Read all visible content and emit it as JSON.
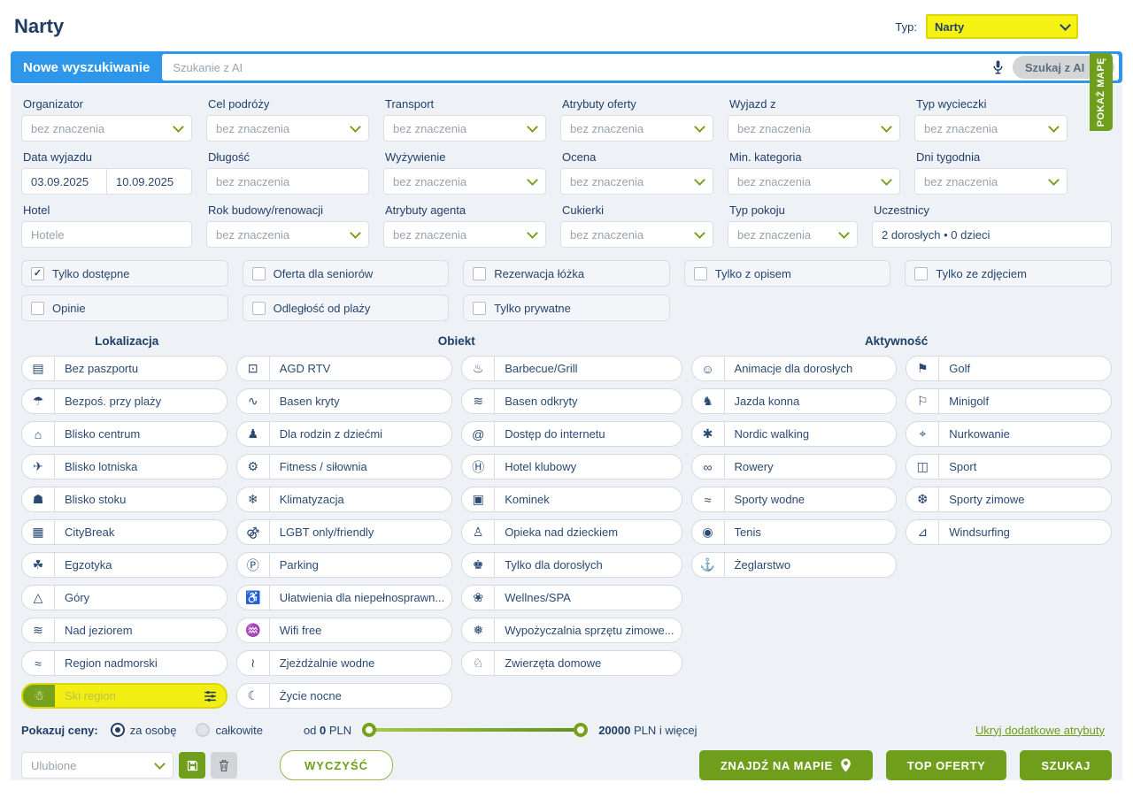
{
  "page_title": "Narty",
  "type_selector": {
    "label": "Typ:",
    "value": "Narty",
    "chevron_icon": "chevron-down-icon"
  },
  "search_bar": {
    "new_search_label": "Nowe wyszukiwanie",
    "input_placeholder": "Szukanie z AI",
    "mic_icon": "microphone-icon",
    "ai_button_label": "Szukaj z AI",
    "send_icon": "➤"
  },
  "map_tab": {
    "label": "POKAŻ MAPĘ"
  },
  "filters": {
    "row1": [
      {
        "label": "Organizator",
        "kind": "select",
        "value": "bez znaczenia"
      },
      {
        "label": "Cel podróży",
        "kind": "select",
        "value": "bez znaczenia"
      },
      {
        "label": "Transport",
        "kind": "select",
        "value": "bez znaczenia"
      },
      {
        "label": "Atrybuty oferty",
        "kind": "select",
        "value": "bez znaczenia"
      },
      {
        "label": "Wyjazd z",
        "kind": "select",
        "value": "bez znaczenia"
      },
      {
        "label": "Typ wycieczki",
        "kind": "select",
        "value": "bez znaczenia"
      }
    ],
    "row2": [
      {
        "label": "Data wyjazdu",
        "kind": "dates",
        "values": [
          "03.09.2025",
          "10.09.2025"
        ]
      },
      {
        "label": "Długość",
        "kind": "placeholder",
        "value": "bez znaczenia"
      },
      {
        "label": "Wyżywienie",
        "kind": "select",
        "value": "bez znaczenia"
      },
      {
        "label": "Ocena",
        "kind": "select",
        "value": "bez znaczenia"
      },
      {
        "label": "Min. kategoria",
        "kind": "select",
        "value": "bez znaczenia"
      },
      {
        "label": "Dni tygodnia",
        "kind": "select",
        "value": "bez znaczenia"
      }
    ],
    "row3": [
      {
        "label": "Hotel",
        "kind": "placeholder",
        "value": "Hotele"
      },
      {
        "label": "Rok budowy/renowacji",
        "kind": "select",
        "value": "bez znaczenia"
      },
      {
        "label": "Atrybuty agenta",
        "kind": "select",
        "value": "bez znaczenia"
      },
      {
        "label": "Cukierki",
        "kind": "select",
        "value": "bez znaczenia"
      },
      {
        "label": "Typ pokoju",
        "kind": "select",
        "value": "bez znaczenia"
      },
      {
        "label": "Uczestnicy",
        "kind": "value",
        "value": "2 dorosłych • 0 dzieci"
      }
    ]
  },
  "toggles_row1": [
    {
      "label": "Tylko dostępne",
      "checked": true
    },
    {
      "label": "Oferta dla seniorów",
      "checked": false
    },
    {
      "label": "Rezerwacja łóżka",
      "checked": false
    },
    {
      "label": "Tylko z opisem",
      "checked": false
    },
    {
      "label": "Tylko ze zdjęciem",
      "checked": false
    }
  ],
  "toggles_row2": [
    {
      "label": "Opinie",
      "checked": false
    },
    {
      "label": "Odległość od plaży",
      "checked": false
    },
    {
      "label": "Tylko prywatne",
      "checked": false
    }
  ],
  "sections": {
    "s1": "Lokalizacja",
    "s2": "Obiekt",
    "s3": "Aktywność"
  },
  "attribute_columns": [
    [
      {
        "icon": "passport-icon",
        "glyph": "▤",
        "label": "Bez paszportu"
      },
      {
        "icon": "beach-icon",
        "glyph": "☂",
        "label": "Bezpoś. przy plaży"
      },
      {
        "icon": "city-center-icon",
        "glyph": "⌂",
        "label": "Blisko centrum"
      },
      {
        "icon": "airport-icon",
        "glyph": "✈",
        "label": "Blisko lotniska"
      },
      {
        "icon": "ski-lift-icon",
        "glyph": "☗",
        "label": "Blisko stoku"
      },
      {
        "icon": "citybreak-icon",
        "glyph": "▦",
        "label": "CityBreak"
      },
      {
        "icon": "palm-icon",
        "glyph": "☘",
        "label": "Egzotyka"
      },
      {
        "icon": "mountain-icon",
        "glyph": "△",
        "label": "Góry"
      },
      {
        "icon": "lake-icon",
        "glyph": "≋",
        "label": "Nad jeziorem"
      },
      {
        "icon": "seaside-icon",
        "glyph": "≈",
        "label": "Region nadmorski"
      },
      {
        "icon": "skier-icon",
        "glyph": "☃",
        "label": "Ski region",
        "highlighted": true,
        "extra_icon": "sliders-icon"
      }
    ],
    [
      {
        "icon": "appliances-icon",
        "glyph": "⊡",
        "label": "AGD RTV"
      },
      {
        "icon": "indoor-pool-icon",
        "glyph": "∿",
        "label": "Basen kryty"
      },
      {
        "icon": "family-icon",
        "glyph": "♟",
        "label": "Dla rodzin z dziećmi"
      },
      {
        "icon": "fitness-icon",
        "glyph": "⚙",
        "label": "Fitness / siłownia"
      },
      {
        "icon": "air-conditioning-icon",
        "glyph": "❄",
        "label": "Klimatyzacja"
      },
      {
        "icon": "lgbt-icon",
        "glyph": "⚣",
        "label": "LGBT only/friendly"
      },
      {
        "icon": "parking-icon",
        "glyph": "Ⓟ",
        "label": "Parking"
      },
      {
        "icon": "wheelchair-icon",
        "glyph": "♿",
        "label": "Ułatwienia dla niepełnosprawn..."
      },
      {
        "icon": "wifi-icon",
        "glyph": "♒",
        "label": "Wifi free"
      },
      {
        "icon": "water-slide-icon",
        "glyph": "≀",
        "label": "Zjeżdżalnie wodne"
      },
      {
        "icon": "nightlife-icon",
        "glyph": "☾",
        "label": "Życie nocne"
      }
    ],
    [
      {
        "icon": "grill-icon",
        "glyph": "♨",
        "label": "Barbecue/Grill"
      },
      {
        "icon": "outdoor-pool-icon",
        "glyph": "≋",
        "label": "Basen odkryty"
      },
      {
        "icon": "internet-icon",
        "glyph": "@",
        "label": "Dostęp do internetu"
      },
      {
        "icon": "club-hotel-icon",
        "glyph": "Ⓗ",
        "label": "Hotel klubowy"
      },
      {
        "icon": "fireplace-icon",
        "glyph": "▣",
        "label": "Kominek"
      },
      {
        "icon": "childcare-icon",
        "glyph": "♙",
        "label": "Opieka nad dzieckiem"
      },
      {
        "icon": "adults-only-icon",
        "glyph": "♚",
        "label": "Tylko dla dorosłych"
      },
      {
        "icon": "spa-icon",
        "glyph": "❀",
        "label": "Wellnes/SPA"
      },
      {
        "icon": "winter-rental-icon",
        "glyph": "❅",
        "label": "Wypożyczalnia sprzętu zimowe..."
      },
      {
        "icon": "pets-icon",
        "glyph": "♘",
        "label": "Zwierzęta domowe"
      }
    ],
    [
      {
        "icon": "animation-icon",
        "glyph": "☺",
        "label": "Animacje dla dorosłych"
      },
      {
        "icon": "horse-riding-icon",
        "glyph": "♞",
        "label": "Jazda konna"
      },
      {
        "icon": "nordic-walking-icon",
        "glyph": "✱",
        "label": "Nordic walking"
      },
      {
        "icon": "bicycle-icon",
        "glyph": "∞",
        "label": "Rowery"
      },
      {
        "icon": "water-sports-icon",
        "glyph": "≈",
        "label": "Sporty wodne"
      },
      {
        "icon": "tennis-icon",
        "glyph": "◉",
        "label": "Tenis"
      },
      {
        "icon": "sailing-icon",
        "glyph": "⚓",
        "label": "Żeglarstwo"
      }
    ],
    [
      {
        "icon": "golf-icon",
        "glyph": "⚑",
        "label": "Golf"
      },
      {
        "icon": "minigolf-icon",
        "glyph": "⚐",
        "label": "Minigolf"
      },
      {
        "icon": "diving-icon",
        "glyph": "⌖",
        "label": "Nurkowanie"
      },
      {
        "icon": "stadium-icon",
        "glyph": "◫",
        "label": "Sport"
      },
      {
        "icon": "winter-sports-icon",
        "glyph": "❆",
        "label": "Sporty zimowe"
      },
      {
        "icon": "windsurfing-icon",
        "glyph": "⊿",
        "label": "Windsurfing"
      }
    ]
  ],
  "price_bar": {
    "label": "Pokazuj ceny:",
    "options": [
      {
        "label": "za osobę",
        "selected": true
      },
      {
        "label": "całkowite",
        "selected": false
      }
    ],
    "min_prefix": "od",
    "min_value": "0",
    "min_suffix": "PLN",
    "max_value": "20000",
    "max_suffix": "PLN i więcej",
    "hide_link": "Ukryj dodatkowe atrybuty"
  },
  "footer": {
    "favorites_placeholder": "Ulubione",
    "save_icon": "save-icon",
    "trash_icon": "trash-icon",
    "clear_label": "WYCZYŚĆ",
    "map_button_label": "ZNAJDŹ NA MAPIE",
    "pin_icon": "map-pin-icon",
    "top_button_label": "TOP OFERTY",
    "search_button_label": "SZUKAJ"
  },
  "colors": {
    "accent_green": "#6f9d1c",
    "highlight_yellow": "#f2ee11",
    "bar_blue": "#2e97ea",
    "navy_text": "#20406b",
    "panel_gray": "#eef1f5"
  }
}
